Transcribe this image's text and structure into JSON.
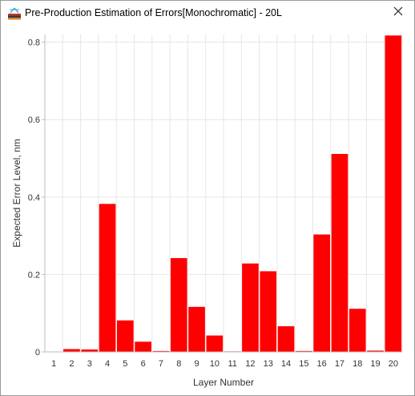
{
  "window": {
    "title": "Pre-Production Estimation of Errors[Monochromatic] - 20L",
    "icon": "app-logo-icon",
    "close_icon": "close-icon"
  },
  "colors": {
    "bar": "#ff0000",
    "bar_edge": "#ffffff",
    "grid": "#e6e6e6",
    "axis": "#bdbdbd"
  },
  "chart_data": {
    "type": "bar",
    "categories": [
      "1",
      "2",
      "3",
      "4",
      "5",
      "6",
      "7",
      "8",
      "9",
      "10",
      "11",
      "12",
      "13",
      "14",
      "15",
      "16",
      "17",
      "18",
      "19",
      "20"
    ],
    "values": [
      0.001,
      0.008,
      0.007,
      0.383,
      0.082,
      0.027,
      0.003,
      0.243,
      0.117,
      0.043,
      0.002,
      0.229,
      0.209,
      0.067,
      0.003,
      0.304,
      0.512,
      0.112,
      0.004,
      0.818
    ],
    "title": "",
    "xlabel": "Layer Number",
    "ylabel": "Expected Error Level, nm",
    "ylim": [
      0,
      0.82
    ],
    "yticks": [
      0,
      0.2,
      0.4,
      0.6,
      0.8
    ],
    "ytick_labels": [
      "0",
      "0.2",
      "0.4",
      "0.6",
      "0.8"
    ],
    "grid": true,
    "legend": "none"
  }
}
